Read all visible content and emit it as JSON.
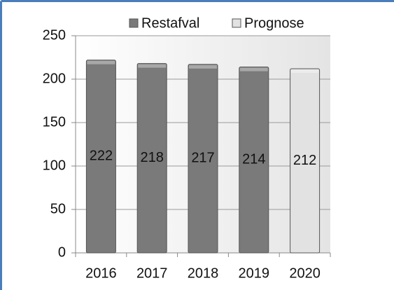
{
  "chart_data": {
    "type": "bar",
    "categories": [
      "2016",
      "2017",
      "2018",
      "2019",
      "2020"
    ],
    "series": [
      {
        "name": "Restafval",
        "color": "#7a7a7a",
        "values": [
          222,
          218,
          217,
          214,
          null
        ]
      },
      {
        "name": "Prognose",
        "color": "#e2e2e2",
        "values": [
          null,
          null,
          null,
          null,
          212
        ]
      }
    ],
    "ylim": [
      0,
      250
    ],
    "yticks": [
      0,
      50,
      100,
      150,
      200,
      250
    ],
    "grid": true,
    "legend": "top"
  }
}
